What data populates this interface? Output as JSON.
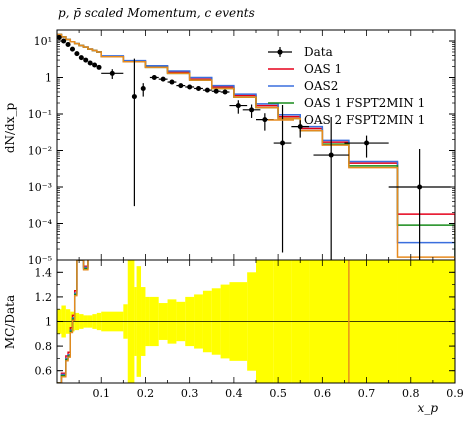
{
  "chart_data": [
    {
      "type": "line",
      "title": "p, p̄ scaled Momentum, c events",
      "xlabel": "",
      "ylabel": "dN/dx_p",
      "yscale": "log",
      "xlim": [
        0.0,
        0.9
      ],
      "ylim": [
        1e-05,
        20
      ],
      "y_ticks": [
        {
          "value": 1e-05,
          "label": "10⁻⁵"
        },
        {
          "value": 0.0001,
          "label": "10⁻⁴"
        },
        {
          "value": 0.001,
          "label": "10⁻³"
        },
        {
          "value": 0.01,
          "label": "10⁻²"
        },
        {
          "value": 0.1,
          "label": "10⁻¹"
        },
        {
          "value": 1,
          "label": "1"
        },
        {
          "value": 10,
          "label": "10¹"
        }
      ],
      "legend_placement": "top-right",
      "series": [
        {
          "name": "Data",
          "color": "#000000",
          "style": "points-with-errors",
          "x": [
            0.005,
            0.015,
            0.025,
            0.035,
            0.045,
            0.055,
            0.065,
            0.075,
            0.085,
            0.095,
            0.125,
            0.175,
            0.195,
            0.22,
            0.24,
            0.26,
            0.28,
            0.3,
            0.32,
            0.34,
            0.36,
            0.38,
            0.41,
            0.44,
            0.47,
            0.51,
            0.55,
            0.62,
            0.7,
            0.82
          ],
          "y": [
            12.5,
            10,
            8,
            6,
            4.5,
            3.5,
            3,
            2.5,
            2.2,
            1.9,
            1.3,
            0.3,
            0.5,
            1,
            0.9,
            0.75,
            0.6,
            0.55,
            0.5,
            0.45,
            0.42,
            0.4,
            0.17,
            0.13,
            0.07,
            0.016,
            0.045,
            0.0075,
            0.016,
            0.001
          ]
        },
        {
          "name": "OAS 1",
          "color": "#e5001b",
          "style": "step",
          "bin_edges": [
            0.0,
            0.01,
            0.02,
            0.03,
            0.04,
            0.05,
            0.06,
            0.07,
            0.08,
            0.09,
            0.1,
            0.15,
            0.2,
            0.25,
            0.3,
            0.35,
            0.4,
            0.45,
            0.5,
            0.55,
            0.6,
            0.66,
            0.77,
            0.9
          ],
          "values": [
            15,
            13,
            11,
            9.5,
            8.5,
            7.5,
            6.8,
            6.0,
            5.5,
            5.0,
            3.8,
            2.8,
            2.0,
            1.4,
            0.9,
            0.55,
            0.32,
            0.17,
            0.085,
            0.04,
            0.017,
            0.0045,
            0.00018
          ]
        },
        {
          "name": "OAS2",
          "color": "#3a6edd",
          "style": "step",
          "bin_edges": [
            0.0,
            0.01,
            0.02,
            0.03,
            0.04,
            0.05,
            0.06,
            0.07,
            0.08,
            0.09,
            0.1,
            0.15,
            0.2,
            0.25,
            0.3,
            0.35,
            0.4,
            0.45,
            0.5,
            0.55,
            0.6,
            0.66,
            0.77,
            0.9
          ],
          "values": [
            15,
            13,
            11,
            9.5,
            8.5,
            7.5,
            6.8,
            6.0,
            5.5,
            5.0,
            3.9,
            2.9,
            2.1,
            1.5,
            1.0,
            0.6,
            0.35,
            0.19,
            0.095,
            0.045,
            0.019,
            0.005,
            3e-05
          ]
        },
        {
          "name": "OAS 1 FSPT2MIN 1",
          "color": "#188b1b",
          "style": "step",
          "bin_edges": [
            0.0,
            0.01,
            0.02,
            0.03,
            0.04,
            0.05,
            0.06,
            0.07,
            0.08,
            0.09,
            0.1,
            0.15,
            0.2,
            0.25,
            0.3,
            0.35,
            0.4,
            0.45,
            0.5,
            0.55,
            0.6,
            0.66,
            0.77,
            0.9
          ],
          "values": [
            15,
            13,
            11,
            9.5,
            8.5,
            7.5,
            6.8,
            6.0,
            5.5,
            5.0,
            3.7,
            2.7,
            1.9,
            1.3,
            0.85,
            0.5,
            0.29,
            0.15,
            0.075,
            0.035,
            0.015,
            0.0038,
            9e-05
          ]
        },
        {
          "name": "OAS 2 FSPT2MIN 1",
          "color": "#e68a1f",
          "style": "step",
          "bin_edges": [
            0.0,
            0.01,
            0.02,
            0.03,
            0.04,
            0.05,
            0.06,
            0.07,
            0.08,
            0.09,
            0.1,
            0.15,
            0.2,
            0.25,
            0.3,
            0.35,
            0.4,
            0.45,
            0.5,
            0.55,
            0.6,
            0.66,
            0.77,
            0.9
          ],
          "values": [
            15,
            13,
            11,
            9.5,
            8.5,
            7.5,
            6.8,
            6.0,
            5.5,
            5.0,
            3.7,
            2.7,
            1.9,
            1.3,
            0.85,
            0.5,
            0.29,
            0.15,
            0.075,
            0.035,
            0.014,
            0.0034,
            1.2e-05
          ]
        }
      ]
    },
    {
      "type": "line",
      "title": "",
      "xlabel": "x_p",
      "ylabel": "MC/Data",
      "xlim": [
        0.0,
        0.9
      ],
      "ylim": [
        0.5,
        1.5
      ],
      "x_ticks": [
        0.1,
        0.2,
        0.3,
        0.4,
        0.5,
        0.6,
        0.7,
        0.8,
        0.9
      ],
      "y_ticks": [
        0.6,
        0.8,
        1.0,
        1.2,
        1.4
      ],
      "y_tick_labels": [
        "0.6",
        "0.8",
        "1",
        "1.2",
        "1.4"
      ],
      "uncertainty_band_color": "#ffff00",
      "uncertainty_band": {
        "bin_edges": [
          0.0,
          0.01,
          0.02,
          0.03,
          0.04,
          0.05,
          0.06,
          0.07,
          0.08,
          0.09,
          0.1,
          0.15,
          0.16,
          0.175,
          0.18,
          0.19,
          0.2,
          0.21,
          0.23,
          0.25,
          0.27,
          0.29,
          0.31,
          0.33,
          0.35,
          0.37,
          0.39,
          0.43,
          0.45,
          0.49,
          0.53,
          0.57,
          0.66,
          0.77,
          0.9
        ],
        "lower": [
          0.9,
          0.87,
          0.9,
          0.92,
          0.93,
          0.94,
          0.95,
          0.95,
          0.94,
          0.93,
          0.92,
          0.86,
          0.5,
          0.72,
          0.55,
          0.72,
          0.8,
          0.8,
          0.85,
          0.82,
          0.84,
          0.8,
          0.78,
          0.75,
          0.73,
          0.7,
          0.68,
          0.6,
          0.5,
          0.5,
          0.5,
          0.5,
          0.5,
          0.5
        ],
        "upper": [
          1.1,
          1.13,
          1.1,
          1.08,
          1.07,
          1.06,
          1.05,
          1.05,
          1.06,
          1.07,
          1.08,
          1.14,
          1.5,
          1.28,
          1.45,
          1.28,
          1.2,
          1.2,
          1.15,
          1.18,
          1.16,
          1.2,
          1.22,
          1.25,
          1.27,
          1.3,
          1.32,
          1.4,
          1.5,
          1.5,
          1.5,
          1.5,
          1.5,
          1.5
        ]
      },
      "series": [
        {
          "name": "OAS 1",
          "color": "#e5001b",
          "x": [
            0.0,
            0.01,
            0.02,
            0.025,
            0.03,
            0.035,
            0.04,
            0.045,
            0.05,
            0.06,
            0.07
          ],
          "y": [
            0.5,
            0.58,
            0.72,
            0.75,
            0.95,
            1.05,
            1.25,
            1.5,
            1.5,
            1.45,
            1.5
          ]
        },
        {
          "name": "OAS2",
          "color": "#3a6edd",
          "x": [
            0.0,
            0.01,
            0.02,
            0.025,
            0.03,
            0.035,
            0.04,
            0.045,
            0.05,
            0.06,
            0.07
          ],
          "y": [
            0.5,
            0.57,
            0.7,
            0.73,
            0.93,
            1.03,
            1.23,
            1.5,
            1.5,
            1.44,
            1.5
          ]
        },
        {
          "name": "OAS 1 FSPT2MIN 1",
          "color": "#188b1b",
          "x": [
            0.0,
            0.01,
            0.02,
            0.025,
            0.03,
            0.035,
            0.04,
            0.045,
            0.05,
            0.06,
            0.07
          ],
          "y": [
            0.5,
            0.56,
            0.69,
            0.72,
            0.92,
            1.02,
            1.22,
            1.5,
            1.5,
            1.43,
            1.5
          ]
        },
        {
          "name": "OAS 2 FSPT2MIN 1",
          "color": "#e68a1f",
          "x": [
            0.0,
            0.01,
            0.02,
            0.025,
            0.03,
            0.035,
            0.04,
            0.045,
            0.05,
            0.06,
            0.07
          ],
          "y": [
            0.5,
            0.55,
            0.68,
            0.71,
            0.91,
            1.01,
            1.21,
            1.5,
            1.5,
            1.42,
            1.5
          ]
        }
      ],
      "vertical_marker": {
        "x": 0.66,
        "color": "#e68a1f"
      }
    }
  ]
}
